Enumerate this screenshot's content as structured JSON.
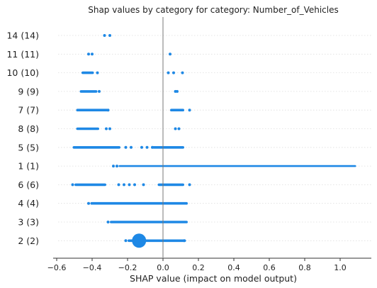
{
  "chart_data": {
    "type": "scatter",
    "title": "Shap values by category for category: Number_of_Vehicles",
    "xlabel": "SHAP value (impact on model output)",
    "ylabel": "",
    "xlim": [
      -0.62,
      1.1
    ],
    "xticks": [
      "−0.6",
      "−0.4",
      "−0.2",
      "0.0",
      "0.2",
      "0.4",
      "0.6",
      "0.8",
      "1.0"
    ],
    "xtick_values": [
      -0.6,
      -0.4,
      -0.2,
      0.0,
      0.2,
      0.4,
      0.6,
      0.8,
      1.0
    ],
    "grid": "horizontal dotted row lines",
    "color": "#1E88E5",
    "categories": [
      "14 (14)",
      "11 (11)",
      "10 (10)",
      "9 (9)",
      "7 (7)",
      "8 (8)",
      "5 (5)",
      "1 (1)",
      "6 (6)",
      "4 (4)",
      "3 (3)",
      "2 (2)"
    ],
    "series": [
      {
        "category": "14 (14)",
        "points": [
          -0.33,
          -0.3
        ],
        "bands": []
      },
      {
        "category": "11 (11)",
        "points": [
          -0.42,
          -0.4,
          0.04
        ],
        "bands": []
      },
      {
        "category": "10 (10)",
        "points": [
          -0.37,
          0.03,
          0.06,
          0.11
        ],
        "bands": [
          {
            "from": -0.46,
            "to": -0.39
          }
        ]
      },
      {
        "category": "9 (9)",
        "points": [
          -0.36,
          0.07,
          0.08
        ],
        "bands": [
          {
            "from": -0.47,
            "to": -0.37
          }
        ]
      },
      {
        "category": "7 (7)",
        "points": [
          -0.31,
          0.15
        ],
        "bands": [
          {
            "from": -0.49,
            "to": -0.31
          },
          {
            "from": 0.04,
            "to": 0.12
          }
        ]
      },
      {
        "category": "8 (8)",
        "points": [
          -0.32,
          -0.3,
          0.07,
          0.09
        ],
        "bands": [
          {
            "from": -0.49,
            "to": -0.36
          }
        ]
      },
      {
        "category": "5 (5)",
        "points": [
          -0.21,
          -0.18,
          -0.12,
          -0.09,
          -0.06
        ],
        "bands": [
          {
            "from": -0.51,
            "to": -0.24
          },
          {
            "from": -0.06,
            "to": 0.12
          }
        ]
      },
      {
        "category": "1 (1)",
        "points": [
          -0.28,
          -0.26
        ],
        "bands": [
          {
            "from": -0.25,
            "to": 1.09,
            "thick": 2.6
          }
        ]
      },
      {
        "category": "6 (6)",
        "points": [
          -0.51,
          -0.25,
          -0.22,
          -0.19,
          -0.16,
          -0.11,
          0.15
        ],
        "bands": [
          {
            "from": -0.5,
            "to": -0.32
          },
          {
            "from": -0.03,
            "to": 0.12
          }
        ]
      },
      {
        "category": "4 (4)",
        "points": [
          -0.42
        ],
        "bands": [
          {
            "from": -0.41,
            "to": 0.14
          }
        ]
      },
      {
        "category": "3 (3)",
        "points": [
          -0.31
        ],
        "bands": [
          {
            "from": -0.3,
            "to": 0.14
          }
        ]
      },
      {
        "category": "2 (2)",
        "points": [
          -0.21,
          0.12
        ],
        "bands": [
          {
            "from": -0.2,
            "to": 0.13
          }
        ],
        "violin": {
          "center": -0.135,
          "halfwidth": 0.04,
          "height": 10
        }
      }
    ]
  }
}
